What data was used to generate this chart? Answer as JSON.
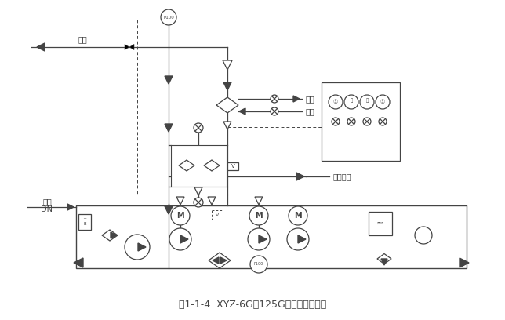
{
  "title": "图1-1-4  XYZ-6G～125G型稀油站原理图",
  "title_fontsize": 9,
  "bg_color": "#ffffff",
  "line_color": "#444444",
  "label_供油": "供油",
  "label_回油": "回油",
  "label_DN": "DN",
  "label_出水": "出水",
  "label_进水": "进水",
  "label_排污油口": "排污油口",
  "fig_width": 6.44,
  "fig_height": 4.08,
  "dpi": 100
}
